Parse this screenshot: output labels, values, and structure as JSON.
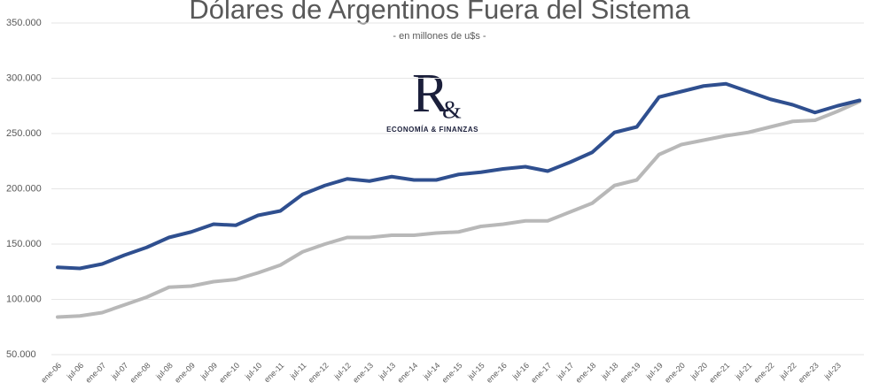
{
  "chart_data": {
    "type": "line",
    "title": "Dólares de Argentinos Fuera del Sistema",
    "subtitle": "- en millones de u$s -",
    "annotations": [
      "R",
      "&",
      "ECONOMÍA & FINANZAS"
    ],
    "categories": [
      "ene-06",
      "jul-06",
      "ene-07",
      "jul-07",
      "ene-08",
      "jul-08",
      "ene-09",
      "jul-09",
      "ene-10",
      "jul-10",
      "ene-11",
      "jul-11",
      "ene-12",
      "jul-12",
      "ene-13",
      "jul-13",
      "ene-14",
      "jul-14",
      "ene-15",
      "jul-15",
      "ene-16",
      "jul-16",
      "ene-17",
      "jul-17",
      "ene-18",
      "jul-18",
      "ene-19",
      "jul-19",
      "ene-20",
      "jul-20",
      "ene-21",
      "jul-21",
      "ene-22",
      "jul-22",
      "ene-23",
      "jul-23",
      null
    ],
    "series": [
      {
        "color": "#2f4f8f",
        "values": [
          129000,
          128000,
          132000,
          140000,
          147000,
          156000,
          161000,
          168000,
          167000,
          176000,
          180000,
          195000,
          203000,
          209000,
          207000,
          211000,
          208000,
          208000,
          213000,
          215000,
          218000,
          220000,
          216000,
          224000,
          233000,
          251000,
          256000,
          283000,
          288000,
          293000,
          295000,
          288000,
          281000,
          276000,
          269000,
          275000,
          280000
        ]
      },
      {
        "color": "#b8b8b8",
        "values": [
          84000,
          85000,
          88000,
          95000,
          102000,
          111000,
          112000,
          116000,
          118000,
          124000,
          131000,
          143000,
          150000,
          156000,
          156000,
          158000,
          158000,
          160000,
          161000,
          166000,
          168000,
          171000,
          171000,
          179000,
          187000,
          203000,
          208000,
          231000,
          240000,
          244000,
          248000,
          251000,
          256000,
          261000,
          262000,
          270000,
          279000
        ]
      }
    ],
    "ylim": [
      50000,
      350000
    ],
    "yticks": [
      {
        "value": 50000,
        "label": "50.000"
      },
      {
        "value": 100000,
        "label": "100.000"
      },
      {
        "value": 150000,
        "label": "150.000"
      },
      {
        "value": 200000,
        "label": "200.000"
      },
      {
        "value": 250000,
        "label": "250.000"
      },
      {
        "value": 300000,
        "label": "300.000"
      },
      {
        "value": 350000,
        "label": "350.000"
      }
    ],
    "grid": true
  }
}
